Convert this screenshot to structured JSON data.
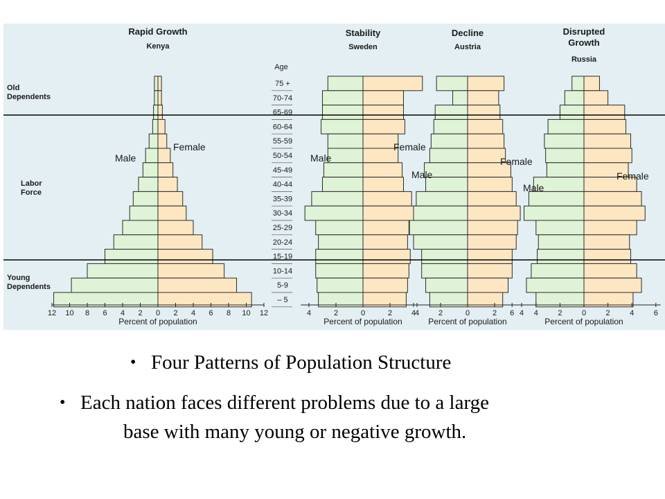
{
  "colors": {
    "background": "#e3eff2",
    "male_fill": "#dff3d6",
    "female_fill": "#fde7c3",
    "stroke": "#2a2a2a",
    "band_line": "#000000"
  },
  "bands": {
    "old": "Old\nDependents",
    "labor": "Labor\nForce",
    "young": "Young\nDependents"
  },
  "age_header": "Age",
  "age_groups": [
    "75 +",
    "70-74",
    "65-69",
    "60-64",
    "55-59",
    "50-54",
    "45-49",
    "40-44",
    "35-39",
    "30-34",
    "25-29",
    "20-24",
    "15-19",
    "10-14",
    "5-9",
    "– 5"
  ],
  "chart_data": [
    {
      "type": "bar",
      "title": "Rapid Growth",
      "subtitle": "Kenya",
      "xlabel": "Percent of population",
      "male_label": "Male",
      "female_label": "Female",
      "categories": [
        "75+",
        "70-74",
        "65-69",
        "60-64",
        "55-59",
        "50-54",
        "45-49",
        "40-44",
        "35-39",
        "30-34",
        "25-29",
        "20-24",
        "15-19",
        "10-14",
        "5-9",
        "-5"
      ],
      "series": [
        {
          "name": "Male",
          "values": [
            0.4,
            0.4,
            0.5,
            0.6,
            1.0,
            1.4,
            1.7,
            2.2,
            2.8,
            3.2,
            4.0,
            5.0,
            6.0,
            8.0,
            9.8,
            11.8
          ]
        },
        {
          "name": "Female",
          "values": [
            0.4,
            0.4,
            0.5,
            0.8,
            1.0,
            1.4,
            1.7,
            2.2,
            2.8,
            3.2,
            4.0,
            5.0,
            6.2,
            7.5,
            8.9,
            10.6
          ]
        }
      ],
      "xticks": [
        "12",
        "10",
        "8",
        "6",
        "4",
        "2",
        "0",
        "2",
        "4",
        "6",
        "8",
        "10",
        "12"
      ],
      "xlim": [
        -12,
        12
      ]
    },
    {
      "type": "bar",
      "title": "Stability",
      "subtitle": "Sweden",
      "xlabel": "Percent of population",
      "male_label": "Male",
      "female_label": "Female",
      "categories": [
        "75+",
        "70-74",
        "65-69",
        "60-64",
        "55-59",
        "50-54",
        "45-49",
        "40-44",
        "35-39",
        "30-34",
        "25-29",
        "20-24",
        "15-19",
        "10-14",
        "5-9",
        "-5"
      ],
      "series": [
        {
          "name": "Male",
          "values": [
            2.6,
            3.0,
            3.0,
            3.1,
            2.6,
            2.6,
            2.9,
            3.0,
            3.8,
            4.3,
            3.5,
            3.3,
            3.5,
            3.5,
            3.4,
            3.3
          ]
        },
        {
          "name": "Female",
          "values": [
            4.4,
            3.0,
            3.0,
            3.1,
            2.6,
            2.6,
            2.9,
            3.0,
            3.6,
            4.0,
            3.4,
            3.3,
            3.5,
            3.4,
            3.3,
            3.2
          ]
        }
      ],
      "xticks": [
        "4",
        "2",
        "0",
        "2",
        "4"
      ],
      "xlim": [
        -4.6,
        4.6
      ]
    },
    {
      "type": "bar",
      "title": "Decline",
      "subtitle": "Austria",
      "xlabel": "Percent of population",
      "male_label": "Male",
      "female_label": "Female",
      "categories": [
        "75+",
        "70-74",
        "65-69",
        "60-64",
        "55-59",
        "50-54",
        "45-49",
        "40-44",
        "35-39",
        "30-34",
        "25-29",
        "20-24",
        "15-19",
        "10-14",
        "5-9",
        "-5"
      ],
      "series": [
        {
          "name": "Male",
          "values": [
            2.3,
            1.1,
            2.4,
            2.5,
            2.7,
            2.8,
            3.2,
            3.1,
            3.8,
            4.0,
            4.3,
            4.0,
            3.4,
            3.4,
            3.1,
            2.8
          ]
        },
        {
          "name": "Female",
          "values": [
            2.7,
            2.3,
            2.4,
            2.6,
            2.7,
            2.8,
            3.2,
            3.3,
            3.6,
            3.9,
            3.7,
            3.6,
            3.3,
            3.3,
            3.0,
            2.6
          ]
        }
      ],
      "xticks": [
        "4",
        "2",
        "0",
        "2",
        "4"
      ],
      "xlim": [
        -4.6,
        4.6
      ]
    },
    {
      "type": "bar",
      "title": "Disrupted\nGrowth",
      "subtitle": "Russia",
      "xlabel": "Percent of population",
      "male_label": "Male",
      "female_label": "Female",
      "categories": [
        "75+",
        "70-74",
        "65-69",
        "60-64",
        "55-59",
        "50-54",
        "45-49",
        "40-44",
        "35-39",
        "30-34",
        "25-29",
        "20-24",
        "15-19",
        "10-14",
        "5-9",
        "-5"
      ],
      "series": [
        {
          "name": "Male",
          "values": [
            1.0,
            1.6,
            2.0,
            3.0,
            3.3,
            3.2,
            3.1,
            4.2,
            4.6,
            5.0,
            4.0,
            3.8,
            3.9,
            4.4,
            4.8,
            4.0
          ]
        },
        {
          "name": "Female",
          "values": [
            1.3,
            2.0,
            3.4,
            3.5,
            3.9,
            4.0,
            3.7,
            4.4,
            4.8,
            5.1,
            4.4,
            3.8,
            3.9,
            4.4,
            4.8,
            4.1
          ]
        }
      ],
      "xticks": [
        "6",
        "4",
        "2",
        "0",
        "2",
        "4",
        "6"
      ],
      "xlim": [
        -6.4,
        6.4
      ]
    }
  ],
  "bullets": [
    {
      "text": "Four Patterns of Population Structure"
    },
    {
      "line1": "Each nation faces different problems due to a large",
      "line2": "base with many young or negative growth."
    }
  ]
}
